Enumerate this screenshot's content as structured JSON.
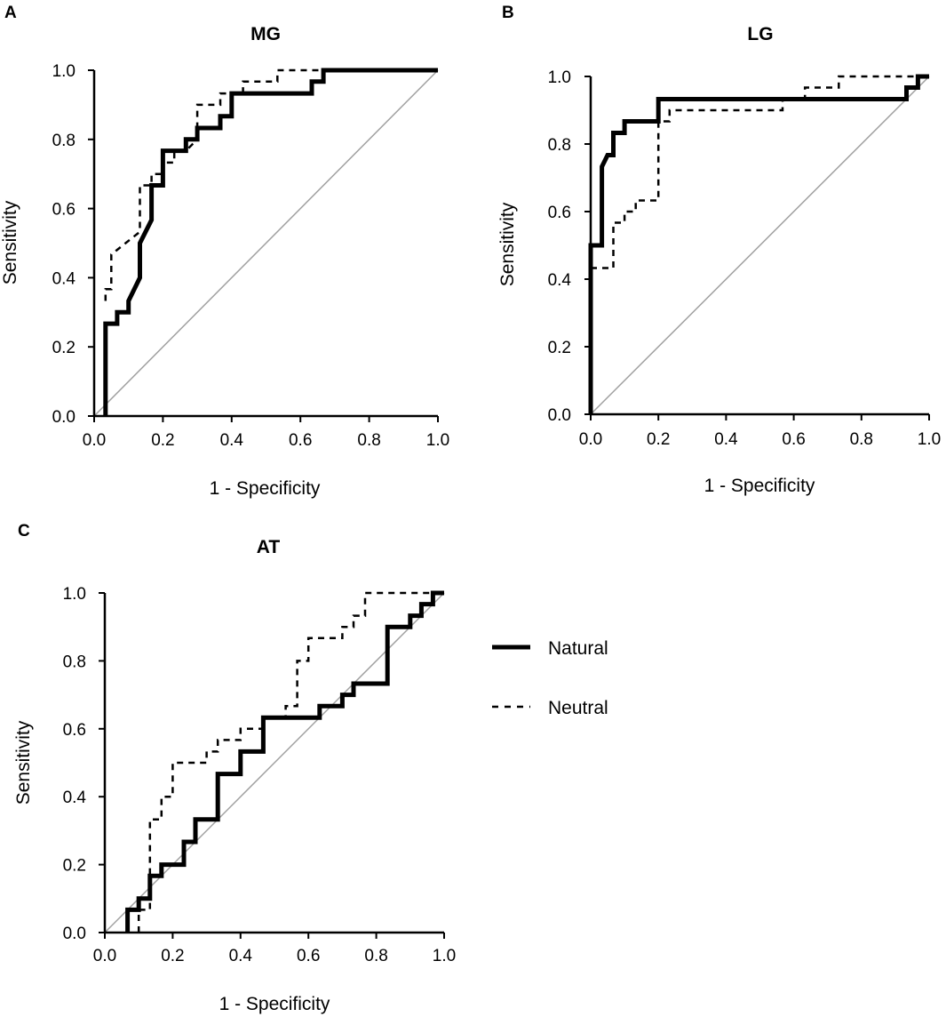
{
  "figure": {
    "legend": [
      {
        "label": "Natural",
        "style": "solid"
      },
      {
        "label": "Neutral",
        "style": "dashed"
      }
    ]
  },
  "chart_data": [
    {
      "panel": "A",
      "type": "line",
      "title": "MG",
      "xlabel": "1 - Specificity",
      "ylabel": "Sensitivity",
      "xlim": [
        0,
        1
      ],
      "ylim": [
        0,
        1
      ],
      "xticks": [
        "0.0",
        "0.2",
        "0.4",
        "0.6",
        "0.8",
        "1.0"
      ],
      "yticks": [
        "0.0",
        "0.2",
        "0.4",
        "0.6",
        "0.8",
        "1.0"
      ],
      "series": [
        {
          "name": "Natural",
          "style": "solid",
          "x": [
            0.033,
            0.033,
            0.067,
            0.067,
            0.1,
            0.1,
            0.133,
            0.133,
            0.167,
            0.167,
            0.2,
            0.2,
            0.267,
            0.267,
            0.3,
            0.3,
            0.367,
            0.367,
            0.4,
            0.4,
            0.633,
            0.633,
            0.667,
            0.667,
            1.0
          ],
          "y": [
            0.0,
            0.267,
            0.267,
            0.3,
            0.3,
            0.333,
            0.4,
            0.5,
            0.567,
            0.667,
            0.667,
            0.767,
            0.767,
            0.8,
            0.8,
            0.833,
            0.833,
            0.867,
            0.867,
            0.933,
            0.933,
            0.967,
            0.967,
            1.0,
            1.0
          ]
        },
        {
          "name": "Neutral",
          "style": "dashed",
          "x": [
            0.033,
            0.033,
            0.05,
            0.05,
            0.133,
            0.133,
            0.167,
            0.167,
            0.2,
            0.2,
            0.233,
            0.233,
            0.267,
            0.3,
            0.3,
            0.367,
            0.367,
            0.433,
            0.433,
            0.467,
            0.467,
            0.533,
            0.533,
            1.0
          ],
          "y": [
            0.333,
            0.367,
            0.367,
            0.467,
            0.533,
            0.667,
            0.667,
            0.7,
            0.7,
            0.733,
            0.733,
            0.767,
            0.767,
            0.8,
            0.9,
            0.9,
            0.933,
            0.933,
            0.967,
            0.967,
            0.967,
            0.967,
            1.0,
            1.0
          ]
        }
      ]
    },
    {
      "panel": "B",
      "type": "line",
      "title": "LG",
      "xlabel": "1 - Specificity",
      "ylabel": "Sensitivity",
      "xlim": [
        0,
        1
      ],
      "ylim": [
        0,
        1
      ],
      "xticks": [
        "0.0",
        "0.2",
        "0.4",
        "0.6",
        "0.8",
        "1.0"
      ],
      "yticks": [
        "0.0",
        "0.2",
        "0.4",
        "0.6",
        "0.8",
        "1.0"
      ],
      "series": [
        {
          "name": "Natural",
          "style": "solid",
          "x": [
            0,
            0,
            0.033,
            0.033,
            0.05,
            0.05,
            0.067,
            0.067,
            0.1,
            0.1,
            0.2,
            0.2,
            0.933,
            0.933,
            0.967,
            0.967,
            1.0
          ],
          "y": [
            0,
            0.5,
            0.5,
            0.733,
            0.767,
            0.767,
            0.767,
            0.833,
            0.833,
            0.867,
            0.867,
            0.933,
            0.933,
            0.967,
            0.967,
            1.0,
            1.0
          ]
        },
        {
          "name": "Neutral",
          "style": "dashed",
          "x": [
            0,
            0,
            0.033,
            0.067,
            0.067,
            0.1,
            0.1,
            0.133,
            0.133,
            0.167,
            0.167,
            0.2,
            0.2,
            0.233,
            0.233,
            0.567,
            0.567,
            0.633,
            0.633,
            0.733,
            0.733,
            1.0
          ],
          "y": [
            0.433,
            0.433,
            0.433,
            0.433,
            0.567,
            0.567,
            0.6,
            0.6,
            0.633,
            0.633,
            0.633,
            0.633,
            0.867,
            0.867,
            0.9,
            0.9,
            0.933,
            0.933,
            0.967,
            0.967,
            1.0,
            1.0
          ]
        }
      ]
    },
    {
      "panel": "C",
      "type": "line",
      "title": "AT",
      "xlabel": "1 - Specificity",
      "ylabel": "Sensitivity",
      "xlim": [
        0,
        1
      ],
      "ylim": [
        0,
        1
      ],
      "xticks": [
        "0.0",
        "0.2",
        "0.4",
        "0.6",
        "0.8",
        "1.0"
      ],
      "yticks": [
        "0.0",
        "0.2",
        "0.4",
        "0.6",
        "0.8",
        "1.0"
      ],
      "series": [
        {
          "name": "Natural",
          "style": "solid",
          "x": [
            0.067,
            0.067,
            0.1,
            0.1,
            0.133,
            0.133,
            0.167,
            0.167,
            0.2,
            0.2,
            0.233,
            0.233,
            0.267,
            0.267,
            0.333,
            0.333,
            0.4,
            0.4,
            0.467,
            0.467,
            0.633,
            0.633,
            0.7,
            0.7,
            0.733,
            0.733,
            0.833,
            0.833,
            0.9,
            0.9,
            0.933,
            0.933,
            0.967,
            0.967,
            1.0
          ],
          "y": [
            0.0,
            0.067,
            0.067,
            0.1,
            0.1,
            0.167,
            0.167,
            0.2,
            0.2,
            0.2,
            0.2,
            0.267,
            0.267,
            0.333,
            0.333,
            0.467,
            0.467,
            0.533,
            0.533,
            0.633,
            0.633,
            0.667,
            0.667,
            0.7,
            0.7,
            0.733,
            0.733,
            0.9,
            0.9,
            0.933,
            0.933,
            0.967,
            0.967,
            1.0,
            1.0
          ]
        },
        {
          "name": "Neutral",
          "style": "dashed",
          "x": [
            0.1,
            0.1,
            0.133,
            0.133,
            0.167,
            0.167,
            0.2,
            0.2,
            0.3,
            0.3,
            0.333,
            0.333,
            0.4,
            0.4,
            0.467,
            0.467,
            0.533,
            0.533,
            0.567,
            0.567,
            0.6,
            0.6,
            0.667,
            0.667,
            0.7,
            0.7,
            0.733,
            0.733,
            0.767,
            0.767,
            1.0
          ],
          "y": [
            0.0,
            0.067,
            0.067,
            0.333,
            0.333,
            0.4,
            0.4,
            0.5,
            0.5,
            0.533,
            0.533,
            0.567,
            0.567,
            0.6,
            0.6,
            0.633,
            0.633,
            0.667,
            0.667,
            0.8,
            0.8,
            0.867,
            0.867,
            0.867,
            0.867,
            0.9,
            0.9,
            0.933,
            0.933,
            1.0,
            1.0
          ]
        }
      ]
    }
  ]
}
